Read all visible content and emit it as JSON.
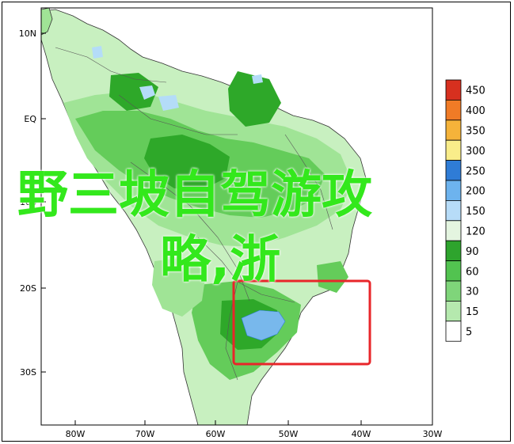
{
  "map": {
    "lat_labels": [
      "10N",
      "EQ",
      "10S",
      "20S",
      "30S"
    ],
    "lon_labels": [
      "80W",
      "70W",
      "60W",
      "50W",
      "40W",
      "30W"
    ],
    "colors": {
      "ocean": "#ffffff",
      "land_base": "#c8f0c0",
      "green_light": "#a0e496",
      "green_mid": "#64cc5a",
      "green_dark": "#2ea829",
      "blue_light": "#b4dcf8",
      "blue_mid": "#78b8ec",
      "highlight_box": "#e8262a"
    }
  },
  "legend": {
    "values": [
      "450",
      "400",
      "350",
      "300",
      "250",
      "200",
      "150",
      "120",
      "90",
      "60",
      "30",
      "15",
      "5"
    ],
    "colors": [
      "#d7301f",
      "#f07b26",
      "#f5b33a",
      "#f9ed8a",
      "#2f7cd6",
      "#6db3ee",
      "#b7dcf8",
      "#e4f5e0",
      "#2ea42d",
      "#52c350",
      "#7fd57a",
      "#b5e9ae",
      "#ffffff"
    ]
  },
  "overlay": {
    "line1": "野三坡自驾游攻",
    "line2": "略,浙"
  }
}
